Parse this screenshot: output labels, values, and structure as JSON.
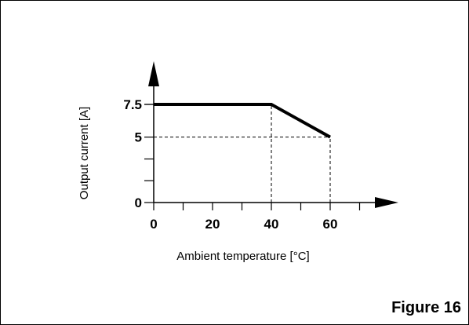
{
  "caption": "Figure 16",
  "colors": {
    "line": "#000000",
    "background": "#ffffff"
  },
  "chart_data": {
    "type": "line",
    "xlabel": "Ambient temperature [°C]",
    "ylabel": "Output current [A]",
    "x_tick_labels": [
      "0",
      "20",
      "40",
      "60"
    ],
    "y_tick_labels": [
      "0",
      "5",
      "7.5"
    ],
    "xlim": [
      0,
      70
    ],
    "ylim": [
      0,
      10
    ],
    "series": [
      {
        "x": [
          0,
          40,
          60
        ],
        "y": [
          7.5,
          7.5,
          5
        ]
      }
    ],
    "reference_lines": [
      {
        "from": [
          40,
          0
        ],
        "to": [
          40,
          7.5
        ],
        "style": "dashed"
      },
      {
        "from": [
          60,
          0
        ],
        "to": [
          60,
          5
        ],
        "style": "dashed"
      },
      {
        "from": [
          0,
          5
        ],
        "to": [
          60,
          5
        ],
        "style": "dashed"
      }
    ],
    "minor_x_ticks": [
      10,
      30,
      50,
      70
    ],
    "minor_y_ticks": [
      1.67,
      3.33,
      7.5
    ]
  }
}
